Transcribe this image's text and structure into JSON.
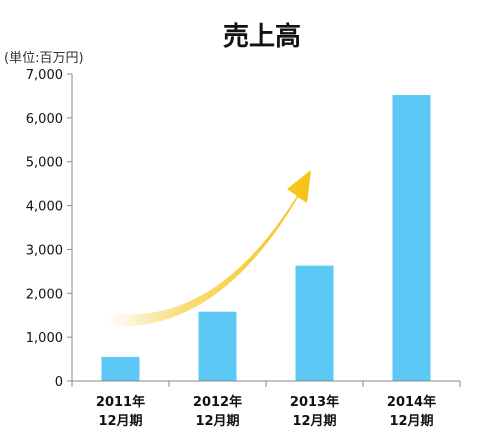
{
  "chart_data": {
    "type": "bar",
    "title": "売上高",
    "unit_label": "(単位:百万円)",
    "categories": [
      {
        "line1": "2011年",
        "line2": "12月期"
      },
      {
        "line1": "2012年",
        "line2": "12月期"
      },
      {
        "line1": "2013年",
        "line2": "12月期"
      },
      {
        "line1": "2014年",
        "line2": "12月期"
      }
    ],
    "values": [
      550,
      1580,
      2630,
      6520
    ],
    "ylim": [
      0,
      7000
    ],
    "yticks": [
      {
        "value": 0,
        "label": "0"
      },
      {
        "value": 1000,
        "label": "1,000"
      },
      {
        "value": 2000,
        "label": "2,000"
      },
      {
        "value": 3000,
        "label": "3,000"
      },
      {
        "value": 4000,
        "label": "4,000"
      },
      {
        "value": 5000,
        "label": "5,000"
      },
      {
        "value": 6000,
        "label": "6,000"
      },
      {
        "value": 7000,
        "label": "7,000"
      }
    ],
    "grid": false,
    "legend": "none",
    "bar_color": "#5bc8f5",
    "axis_color": "#888888",
    "arrow_color": "#f5c211",
    "arrow_annotation": "upward-growth-arrow"
  }
}
